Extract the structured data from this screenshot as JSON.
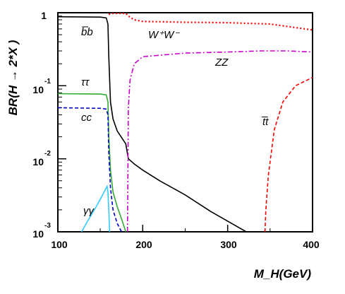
{
  "chart_data": {
    "type": "line",
    "title": "",
    "xlabel": "M_H(GeV)",
    "ylabel": "BR(H → 2*X )",
    "xlim": [
      100,
      400
    ],
    "ylim": [
      0.001,
      1
    ],
    "yscale": "log",
    "grid": false,
    "x_ticks": [
      "100",
      "200",
      "300",
      "400"
    ],
    "y_ticks": [
      {
        "base": "1",
        "exp": ""
      },
      {
        "base": "10",
        "exp": "-1"
      },
      {
        "base": "10",
        "exp": "-2"
      },
      {
        "base": "10",
        "exp": "-3"
      }
    ],
    "series": [
      {
        "name": "b̅b",
        "color": "#000000",
        "dash": "solid",
        "x": [
          100,
          150,
          157,
          159,
          160,
          162,
          165,
          170,
          180,
          183,
          190,
          200,
          220,
          250,
          280,
          300,
          322
        ],
        "y": [
          0.88,
          0.87,
          0.85,
          0.7,
          0.25,
          0.06,
          0.035,
          0.024,
          0.016,
          0.01,
          0.0085,
          0.007,
          0.005,
          0.0032,
          0.0019,
          0.0014,
          0.001
        ]
      },
      {
        "name": "W⁺W⁻",
        "color": "#ff0000",
        "dash": "dotted",
        "x": [
          160,
          165,
          170,
          180,
          183,
          190,
          200,
          250,
          300,
          350,
          400
        ],
        "y": [
          0.95,
          0.98,
          0.98,
          0.98,
          0.9,
          0.8,
          0.76,
          0.74,
          0.73,
          0.7,
          0.58
        ]
      },
      {
        "name": "ZZ",
        "color": "#cc00cc",
        "dash": "dashdot",
        "x": [
          182,
          183,
          185,
          190,
          200,
          250,
          300,
          340,
          370,
          400
        ],
        "y": [
          0.001,
          0.05,
          0.12,
          0.2,
          0.25,
          0.28,
          0.29,
          0.3,
          0.3,
          0.29
        ]
      },
      {
        "name": "t̅t",
        "color": "#ff0000",
        "dash": "dashed",
        "x": [
          344,
          345,
          348,
          355,
          365,
          380,
          400
        ],
        "y": [
          0.001,
          0.002,
          0.006,
          0.025,
          0.06,
          0.1,
          0.13
        ]
      },
      {
        "name": "ττ",
        "color": "#33aa33",
        "dash": "solid",
        "x": [
          100,
          150,
          157,
          159,
          160,
          162,
          165,
          170,
          175,
          180
        ],
        "y": [
          0.078,
          0.077,
          0.075,
          0.06,
          0.02,
          0.007,
          0.0035,
          0.0022,
          0.0015,
          0.001
        ]
      },
      {
        "name": "cc",
        "color": "#0000cc",
        "dash": "dashed",
        "x": [
          100,
          150,
          157,
          159,
          160,
          162,
          165,
          170,
          175
        ],
        "y": [
          0.05,
          0.049,
          0.048,
          0.04,
          0.012,
          0.004,
          0.002,
          0.0013,
          0.001
        ]
      },
      {
        "name": "γγ",
        "color": "#33ccff",
        "dash": "solid",
        "x": [
          128,
          135,
          145,
          150,
          155,
          158,
          159,
          160,
          161
        ],
        "y": [
          0.001,
          0.0014,
          0.0022,
          0.0028,
          0.0036,
          0.0042,
          0.0035,
          0.002,
          0.001
        ]
      }
    ]
  }
}
